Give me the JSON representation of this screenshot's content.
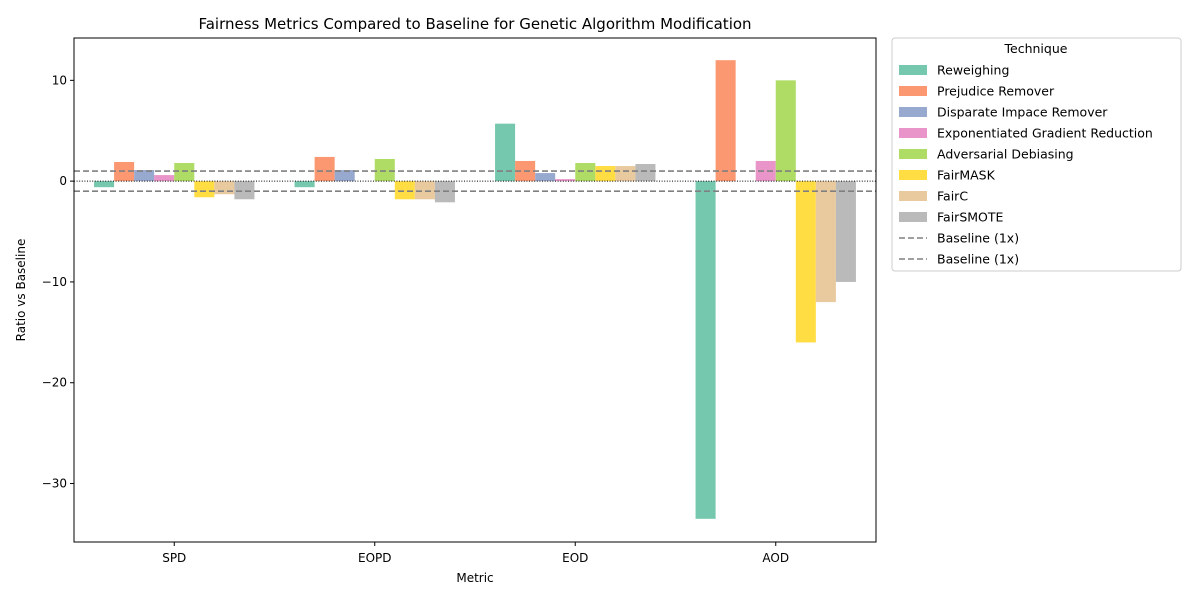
{
  "chart_data": {
    "type": "bar",
    "title": "Fairness Metrics Compared to Baseline for Genetic Algorithm Modification",
    "xlabel": "Metric",
    "ylabel": "Ratio vs Baseline",
    "categories": [
      "SPD",
      "EOPD",
      "EOD",
      "AOD"
    ],
    "ylim": [
      -35.8,
      14.2
    ],
    "yticks": [
      -30,
      -20,
      -10,
      0,
      10
    ],
    "ytick_labels": [
      "−30",
      "−20",
      "−10",
      "0",
      "10"
    ],
    "series": [
      {
        "name": "Reweighing",
        "color": "#66c2a5",
        "values": [
          -0.6,
          -0.6,
          5.7,
          -33.5
        ]
      },
      {
        "name": "Prejudice Remover",
        "color": "#fc8d62",
        "values": [
          1.9,
          2.4,
          2.0,
          12.0
        ]
      },
      {
        "name": "Disparate Impace Remover",
        "color": "#8da0cb",
        "values": [
          1.1,
          1.1,
          0.8,
          0
        ]
      },
      {
        "name": "Exponentiated Gradient Reduction",
        "color": "#e78ac3",
        "values": [
          0.6,
          0,
          0.2,
          2.0
        ]
      },
      {
        "name": "Adversarial Debiasing",
        "color": "#a6d854",
        "values": [
          1.8,
          2.2,
          1.8,
          10.0
        ]
      },
      {
        "name": "FairMASK",
        "color": "#ffd92f",
        "values": [
          -1.6,
          -1.8,
          1.5,
          -16.0
        ]
      },
      {
        "name": "FairC",
        "color": "#e5c494",
        "values": [
          -1.3,
          -1.8,
          1.5,
          -12.0
        ]
      },
      {
        "name": "FairSMOTE",
        "color": "#b3b3b3",
        "values": [
          -1.8,
          -2.1,
          1.7,
          -10.0
        ]
      }
    ],
    "reference_lines": [
      {
        "name": "Baseline (1x)",
        "y": 1,
        "style": "dashed",
        "color": "#808080"
      },
      {
        "name": "Baseline (1x)",
        "y": -1,
        "style": "dashed",
        "color": "#808080"
      }
    ],
    "zero_line": {
      "y": 0,
      "style": "dotted",
      "color": "#000000"
    },
    "legend": {
      "title": "Technique",
      "placement": "outside-right-top"
    },
    "grid": false
  }
}
